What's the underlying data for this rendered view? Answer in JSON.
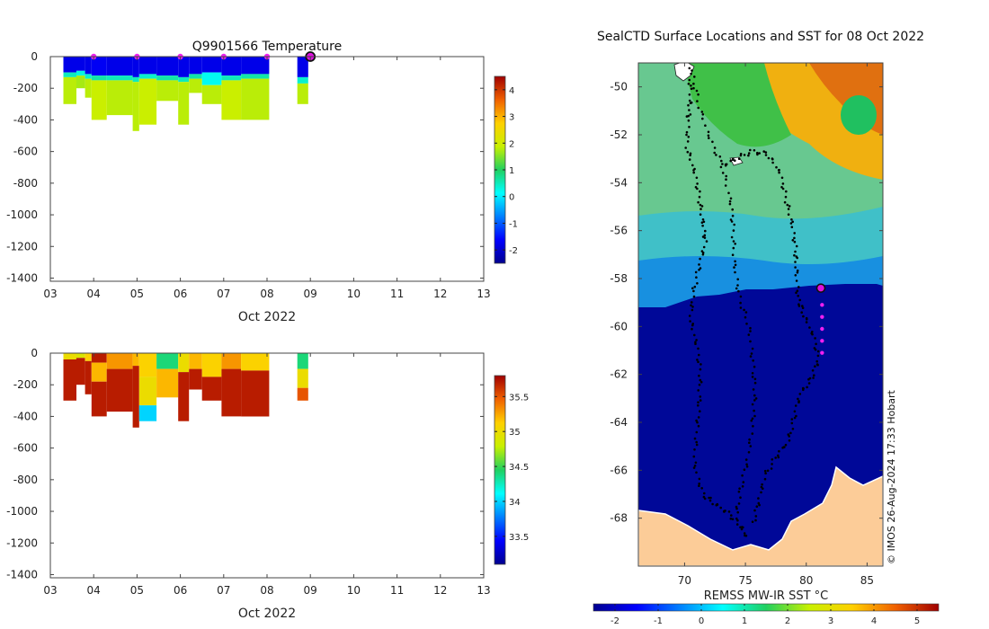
{
  "chart_data": [
    {
      "type": "heatmap",
      "id": "temp",
      "title": "Q9901566  Temperature",
      "xlabel": "Oct 2022",
      "xlim": [
        3,
        13
      ],
      "ylim": [
        -1420,
        0
      ],
      "x_ticks": [
        3,
        4,
        5,
        6,
        7,
        8,
        9,
        10,
        11,
        12,
        13
      ],
      "x_tick_labels": [
        "03",
        "04",
        "05",
        "06",
        "07",
        "08",
        "09",
        "10",
        "11",
        "12",
        "13"
      ],
      "y_ticks": [
        0,
        -200,
        -400,
        -600,
        -800,
        -1000,
        -1200,
        -1400
      ],
      "y_tick_labels": [
        "0",
        "-200",
        "-400",
        "-600",
        "-800",
        "-1000",
        "-1200",
        "-1400"
      ],
      "colorbar": {
        "min": -2.5,
        "max": 4.5,
        "ticks": [
          4,
          3,
          2,
          1,
          0,
          -1,
          -2
        ],
        "tick_labels": [
          "4",
          "3",
          "2",
          "1",
          "0",
          "-1",
          "-2"
        ]
      },
      "profiles": [
        {
          "x0": 3.3,
          "x1": 3.6,
          "depth": 300,
          "layers": [
            [
              0,
              100,
              -1.8
            ],
            [
              100,
              130,
              0.5
            ],
            [
              130,
              300,
              1.8
            ]
          ]
        },
        {
          "x0": 3.6,
          "x1": 3.8,
          "depth": 200,
          "layers": [
            [
              0,
              90,
              -1.8
            ],
            [
              90,
              120,
              0.3
            ],
            [
              120,
              200,
              1.7
            ]
          ]
        },
        {
          "x0": 3.8,
          "x1": 3.95,
          "depth": 260,
          "layers": [
            [
              0,
              110,
              -1.8
            ],
            [
              110,
              140,
              0.4
            ],
            [
              140,
              260,
              1.8
            ]
          ]
        },
        {
          "x0": 3.95,
          "x1": 4.3,
          "depth": 400,
          "layers": [
            [
              0,
              120,
              -1.7
            ],
            [
              120,
              150,
              0.6
            ],
            [
              150,
              400,
              1.9
            ]
          ]
        },
        {
          "x0": 4.3,
          "x1": 4.9,
          "depth": 370,
          "layers": [
            [
              0,
              120,
              -1.8
            ],
            [
              120,
              150,
              0.5
            ],
            [
              150,
              370,
              1.8
            ]
          ]
        },
        {
          "x0": 4.9,
          "x1": 5.05,
          "depth": 470,
          "layers": [
            [
              0,
              130,
              -1.8
            ],
            [
              130,
              160,
              0.5
            ],
            [
              160,
              470,
              1.8
            ]
          ]
        },
        {
          "x0": 5.05,
          "x1": 5.45,
          "depth": 430,
          "layers": [
            [
              0,
              110,
              -1.8
            ],
            [
              110,
              140,
              0.4
            ],
            [
              140,
              430,
              1.9
            ]
          ]
        },
        {
          "x0": 5.45,
          "x1": 5.95,
          "depth": 280,
          "layers": [
            [
              0,
              120,
              -1.8
            ],
            [
              120,
              150,
              0.6
            ],
            [
              150,
              280,
              1.8
            ]
          ]
        },
        {
          "x0": 5.95,
          "x1": 6.2,
          "depth": 430,
          "layers": [
            [
              0,
              130,
              -1.8
            ],
            [
              130,
              160,
              0.5
            ],
            [
              160,
              430,
              1.8
            ]
          ]
        },
        {
          "x0": 6.2,
          "x1": 6.5,
          "depth": 230,
          "layers": [
            [
              0,
              110,
              -1.8
            ],
            [
              110,
              140,
              0.6
            ],
            [
              140,
              230,
              1.8
            ]
          ]
        },
        {
          "x0": 6.5,
          "x1": 6.95,
          "depth": 300,
          "layers": [
            [
              0,
              100,
              -1.8
            ],
            [
              100,
              180,
              0.2
            ],
            [
              180,
              300,
              1.8
            ]
          ]
        },
        {
          "x0": 6.95,
          "x1": 7.4,
          "depth": 400,
          "layers": [
            [
              0,
              120,
              -1.8
            ],
            [
              120,
              150,
              0.5
            ],
            [
              150,
              400,
              1.9
            ]
          ]
        },
        {
          "x0": 7.4,
          "x1": 8.05,
          "depth": 400,
          "layers": [
            [
              0,
              110,
              -1.8
            ],
            [
              110,
              140,
              0.6
            ],
            [
              140,
              400,
              1.8
            ]
          ]
        },
        {
          "x0": 8.7,
          "x1": 8.95,
          "depth": 300,
          "layers": [
            [
              0,
              130,
              -1.8
            ],
            [
              130,
              170,
              0.4
            ],
            [
              170,
              300,
              1.8
            ]
          ]
        }
      ],
      "markers_x": [
        4,
        5,
        6,
        7,
        8
      ],
      "current_x": 9
    },
    {
      "type": "heatmap",
      "id": "sal",
      "title": "",
      "xlabel": "Oct 2022",
      "xlim": [
        3,
        13
      ],
      "ylim": [
        -1420,
        0
      ],
      "x_ticks": [
        3,
        4,
        5,
        6,
        7,
        8,
        9,
        10,
        11,
        12,
        13
      ],
      "x_tick_labels": [
        "03",
        "04",
        "05",
        "06",
        "07",
        "08",
        "09",
        "10",
        "11",
        "12",
        "13"
      ],
      "y_ticks": [
        0,
        -200,
        -400,
        -600,
        -800,
        -1000,
        -1200,
        -1400
      ],
      "y_tick_labels": [
        "0",
        "-200",
        "-400",
        "-600",
        "-800",
        "-1000",
        "-1200",
        "-1400"
      ],
      "colorbar": {
        "min": 33.1,
        "max": 35.8,
        "ticks": [
          35.5,
          35,
          34.5,
          34,
          33.5
        ],
        "tick_labels": [
          "35.5",
          "35",
          "34.5",
          "34",
          "33.5"
        ]
      },
      "profiles": [
        {
          "x0": 3.3,
          "x1": 3.6,
          "depth": 300,
          "layers": [
            [
              0,
              40,
              35.0
            ],
            [
              40,
              300,
              35.7
            ]
          ]
        },
        {
          "x0": 3.6,
          "x1": 3.8,
          "depth": 200,
          "layers": [
            [
              0,
              30,
              34.9
            ],
            [
              30,
              200,
              35.7
            ]
          ]
        },
        {
          "x0": 3.8,
          "x1": 3.95,
          "depth": 260,
          "layers": [
            [
              0,
              50,
              35.1
            ],
            [
              50,
              260,
              35.7
            ]
          ]
        },
        {
          "x0": 3.95,
          "x1": 4.3,
          "depth": 400,
          "layers": [
            [
              0,
              60,
              35.7
            ],
            [
              60,
              180,
              35.2
            ],
            [
              180,
              400,
              35.7
            ]
          ]
        },
        {
          "x0": 4.3,
          "x1": 4.9,
          "depth": 370,
          "layers": [
            [
              0,
              100,
              35.3
            ],
            [
              100,
              370,
              35.7
            ]
          ]
        },
        {
          "x0": 4.9,
          "x1": 5.05,
          "depth": 470,
          "layers": [
            [
              0,
              80,
              35.2
            ],
            [
              80,
              470,
              35.7
            ]
          ]
        },
        {
          "x0": 5.05,
          "x1": 5.45,
          "depth": 430,
          "layers": [
            [
              0,
              150,
              35.1
            ],
            [
              150,
              330,
              35.0
            ],
            [
              330,
              430,
              34.0
            ]
          ]
        },
        {
          "x0": 5.45,
          "x1": 5.95,
          "depth": 280,
          "layers": [
            [
              0,
              100,
              34.4
            ],
            [
              100,
              280,
              35.2
            ]
          ]
        },
        {
          "x0": 5.95,
          "x1": 6.2,
          "depth": 430,
          "layers": [
            [
              0,
              120,
              35.0
            ],
            [
              120,
              430,
              35.7
            ]
          ]
        },
        {
          "x0": 6.2,
          "x1": 6.5,
          "depth": 230,
          "layers": [
            [
              0,
              100,
              35.2
            ],
            [
              100,
              230,
              35.7
            ]
          ]
        },
        {
          "x0": 6.5,
          "x1": 6.95,
          "depth": 300,
          "layers": [
            [
              0,
              150,
              35.1
            ],
            [
              150,
              300,
              35.7
            ]
          ]
        },
        {
          "x0": 6.95,
          "x1": 7.4,
          "depth": 400,
          "layers": [
            [
              0,
              100,
              35.3
            ],
            [
              100,
              400,
              35.7
            ]
          ]
        },
        {
          "x0": 7.4,
          "x1": 8.05,
          "depth": 400,
          "layers": [
            [
              0,
              110,
              35.1
            ],
            [
              110,
              400,
              35.7
            ]
          ]
        },
        {
          "x0": 8.7,
          "x1": 8.95,
          "depth": 300,
          "layers": [
            [
              0,
              100,
              34.4
            ],
            [
              100,
              220,
              35.0
            ],
            [
              220,
              300,
              35.5
            ]
          ]
        }
      ]
    },
    {
      "type": "heatmap",
      "id": "map",
      "title": "SealCTD Surface Locations and SST for 08 Oct 2022",
      "xlim": [
        66.2,
        86.3
      ],
      "ylim": [
        -70,
        -49
      ],
      "x_ticks": [
        70,
        75,
        80,
        85
      ],
      "x_tick_labels": [
        "70",
        "75",
        "80",
        "85"
      ],
      "y_ticks": [
        -50,
        -52,
        -54,
        -56,
        -58,
        -60,
        -62,
        -64,
        -66,
        -68
      ],
      "y_tick_labels": [
        "-50",
        "-52",
        "-54",
        "-56",
        "-58",
        "-60",
        "-62",
        "-64",
        "-66",
        "-68"
      ],
      "colorbar": {
        "label": "REMSS MW-IR SST °C",
        "min": -2.5,
        "max": 5.5,
        "ticks": [
          -2,
          -1,
          0,
          1,
          2,
          3,
          4,
          5
        ],
        "tick_labels": [
          "-2",
          "-1",
          "0",
          "1",
          "2",
          "3",
          "4",
          "5"
        ]
      },
      "track": [
        [
          70.4,
          -49.3
        ],
        [
          70.5,
          -50.5
        ],
        [
          70.3,
          -51.3
        ],
        [
          70.2,
          -52.5
        ],
        [
          70.8,
          -53.5
        ],
        [
          71.2,
          -54.6
        ],
        [
          71.5,
          -55.6
        ],
        [
          71.7,
          -56.5
        ],
        [
          71.2,
          -57.5
        ],
        [
          70.7,
          -58.6
        ],
        [
          70.5,
          -59.7
        ],
        [
          71.0,
          -60.8
        ],
        [
          71.3,
          -62.0
        ],
        [
          71.2,
          -63.2
        ],
        [
          71.0,
          -64.4
        ],
        [
          70.8,
          -65.8
        ],
        [
          71.5,
          -67.0
        ],
        [
          72.5,
          -67.4
        ],
        [
          73.6,
          -67.8
        ],
        [
          74.6,
          -68.3
        ],
        [
          75.1,
          -68.8
        ]
      ],
      "track_b": [
        [
          70.6,
          -49.4
        ],
        [
          71.2,
          -50.8
        ],
        [
          72.1,
          -52.2
        ],
        [
          73.1,
          -53.3
        ],
        [
          73.8,
          -54.8
        ],
        [
          74.0,
          -56.0
        ],
        [
          74.1,
          -57.4
        ],
        [
          74.5,
          -58.8
        ],
        [
          75.3,
          -60.0
        ],
        [
          75.6,
          -61.5
        ],
        [
          75.8,
          -62.8
        ],
        [
          75.6,
          -64.0
        ],
        [
          75.2,
          -65.5
        ],
        [
          74.6,
          -66.8
        ],
        [
          74.2,
          -68.0
        ]
      ],
      "track_c": [
        [
          73.1,
          -53.3
        ],
        [
          74.2,
          -53.0
        ],
        [
          75.5,
          -52.7
        ],
        [
          76.8,
          -52.8
        ],
        [
          77.8,
          -53.5
        ],
        [
          78.3,
          -54.6
        ],
        [
          78.8,
          -55.6
        ],
        [
          79.1,
          -56.7
        ],
        [
          79.2,
          -57.6
        ],
        [
          79.3,
          -58.8
        ],
        [
          79.8,
          -59.5
        ],
        [
          80.6,
          -60.4
        ],
        [
          81.0,
          -61.4
        ],
        [
          80.4,
          -62.2
        ],
        [
          79.5,
          -62.8
        ],
        [
          79.0,
          -63.8
        ],
        [
          78.5,
          -64.8
        ],
        [
          77.6,
          -65.4
        ],
        [
          76.6,
          -66.2
        ],
        [
          76.1,
          -67.3
        ],
        [
          75.6,
          -68.3
        ]
      ],
      "recent_positions": [
        [
          81.3,
          -59.1
        ],
        [
          81.3,
          -59.6
        ],
        [
          81.3,
          -60.1
        ],
        [
          81.3,
          -60.6
        ],
        [
          81.3,
          -61.1
        ]
      ],
      "current_position": [
        81.2,
        -58.4
      ],
      "credit": "© IMOS 26-Aug-2024 17:33 Hobart"
    }
  ]
}
